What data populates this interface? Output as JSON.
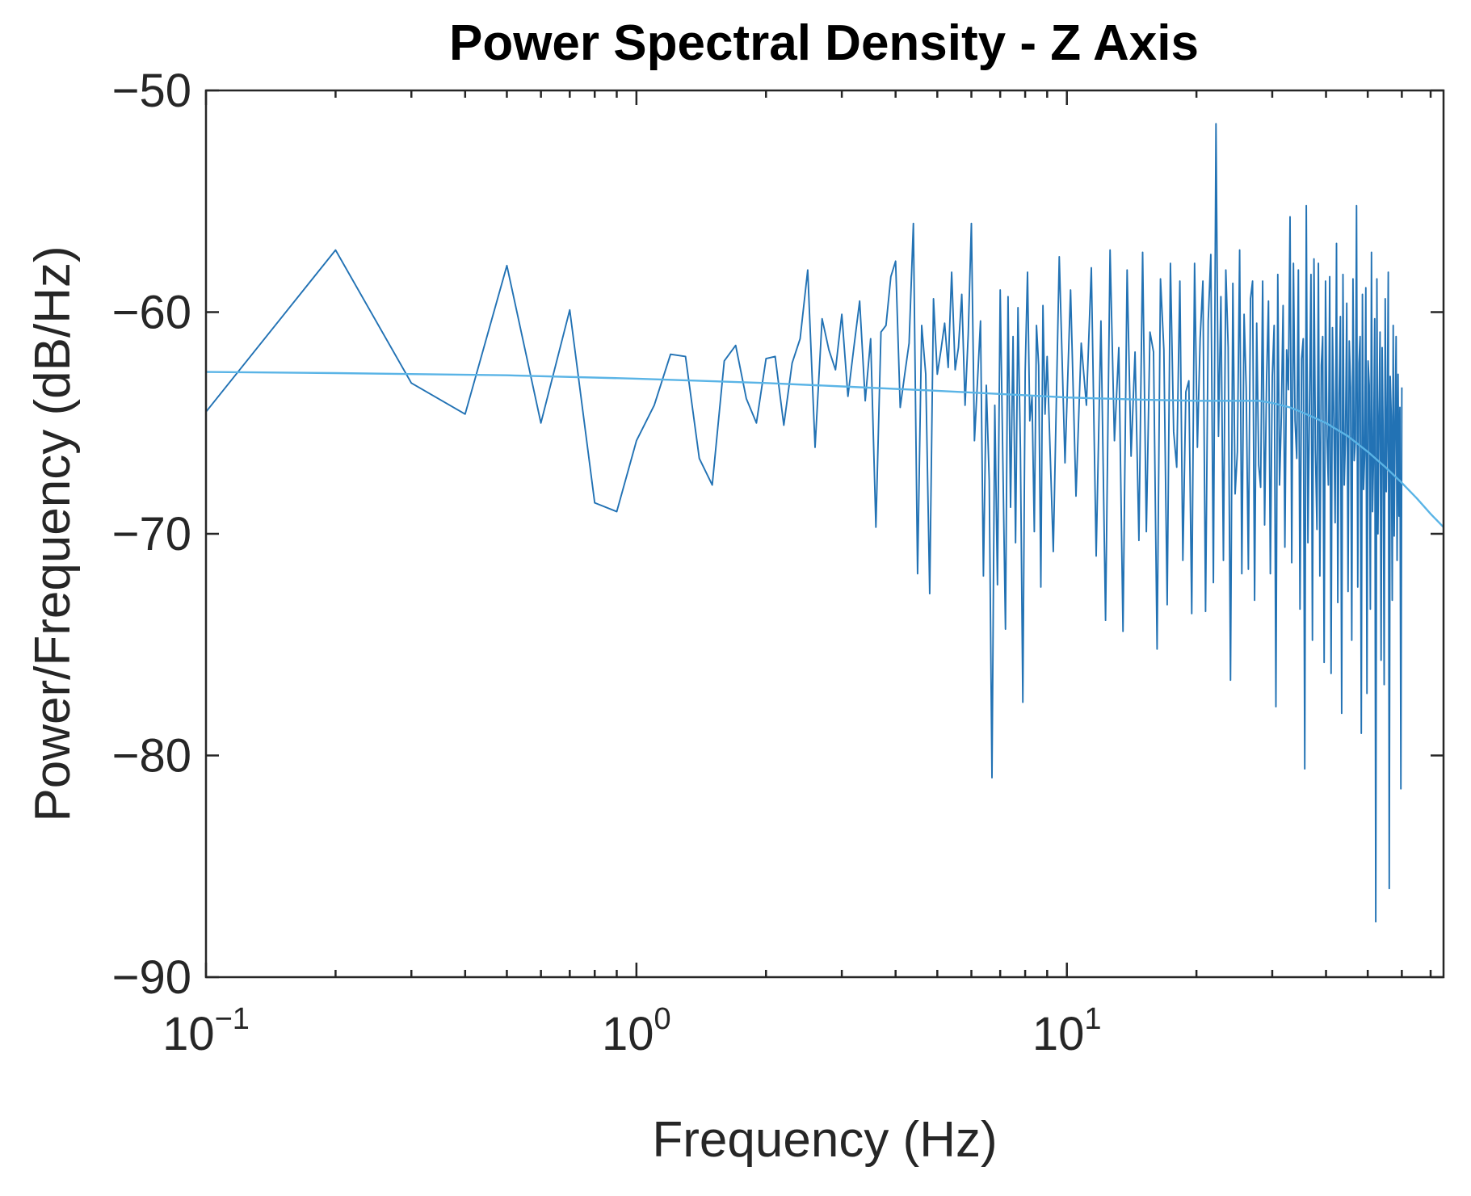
{
  "chart_data": {
    "type": "line",
    "title": "Power Spectral Density - Z Axis",
    "xlabel": "Frequency (Hz)",
    "ylabel": "Power/Frequency (dB/Hz)",
    "x_scale": "log",
    "xlim": [
      0.1,
      75
    ],
    "ylim": [
      -90,
      -50
    ],
    "x_ticks": [
      {
        "base": "10",
        "exp": "−1",
        "value": 0.1
      },
      {
        "base": "10",
        "exp": "0",
        "value": 1
      },
      {
        "base": "10",
        "exp": "1",
        "value": 10
      }
    ],
    "y_ticks": [
      {
        "label": "−50",
        "value": -50
      },
      {
        "label": "−60",
        "value": -60
      },
      {
        "label": "−70",
        "value": -70
      },
      {
        "label": "−80",
        "value": -80
      },
      {
        "label": "−90",
        "value": -90
      }
    ],
    "grid": false,
    "colors": {
      "psd": "#2272b4",
      "fit": "#5ab4e6",
      "axes": "#262626"
    },
    "series": [
      {
        "style": "raw",
        "x": [
          0.1,
          0.2,
          0.3,
          0.4,
          0.5,
          0.6,
          0.7,
          0.8,
          0.9,
          1.0,
          1.1,
          1.2,
          1.3,
          1.4,
          1.5,
          1.6,
          1.7,
          1.8,
          1.9,
          2.0,
          2.1,
          2.2,
          2.3,
          2.4,
          2.5,
          2.6,
          2.7,
          2.8,
          2.9,
          3.0,
          3.1,
          3.2,
          3.3,
          3.4,
          3.5,
          3.6,
          3.7,
          3.8,
          3.9,
          4.0,
          4.1,
          4.2,
          4.3,
          4.4,
          4.5,
          4.6,
          4.7,
          4.8,
          4.9,
          5.0,
          5.1,
          5.2,
          5.3,
          5.4,
          5.5,
          5.6,
          5.7,
          5.8,
          5.9,
          6.0,
          6.1,
          6.2,
          6.3,
          6.4,
          6.5,
          6.6,
          6.7,
          6.8,
          6.9,
          7.0,
          7.1,
          7.2,
          7.3,
          7.4,
          7.5,
          7.6,
          7.7,
          7.8,
          7.9,
          8.0,
          8.1,
          8.2,
          8.3,
          8.4,
          8.5,
          8.6,
          8.7,
          8.8,
          8.9,
          9.0,
          9.3,
          9.6,
          9.9,
          10.2,
          10.5,
          10.8,
          11.1,
          11.4,
          11.7,
          12.0,
          12.3,
          12.6,
          12.9,
          13.2,
          13.5,
          13.8,
          14.1,
          14.4,
          14.7,
          15.0,
          15.3,
          15.6,
          15.9,
          16.2,
          16.5,
          16.8,
          17.1,
          17.4,
          17.7,
          18.0,
          18.3,
          18.6,
          18.9,
          19.2,
          19.5,
          19.8,
          20.1,
          20.4,
          20.7,
          21.0,
          21.3,
          21.6,
          21.9,
          22.2,
          22.5,
          22.8,
          23.1,
          23.4,
          23.7,
          24.0,
          24.3,
          24.6,
          24.9,
          25.2,
          25.5,
          25.8,
          26.1,
          26.4,
          26.7,
          27.0,
          27.3,
          27.6,
          27.9,
          28.2,
          28.5,
          28.8,
          29.1,
          29.4,
          29.7,
          30.0,
          30.3,
          30.6,
          30.9,
          31.2,
          31.5,
          31.8,
          32.1,
          32.4,
          32.7,
          33.0,
          33.3,
          33.6,
          33.9,
          34.2,
          34.5,
          34.8,
          35.1,
          35.4,
          35.7,
          36.0,
          36.3,
          36.6,
          36.9,
          37.2,
          37.5,
          37.8,
          38.1,
          38.4,
          38.7,
          39.0,
          39.3,
          39.6,
          39.9,
          40.2,
          40.5,
          40.8,
          41.1,
          41.4,
          41.7,
          42.0,
          42.3,
          42.6,
          42.9,
          43.2,
          43.5,
          43.8,
          44.1,
          44.4,
          44.7,
          45.0,
          45.3,
          45.6,
          45.9,
          46.2,
          46.5,
          46.8,
          47.1,
          47.4,
          47.7,
          48.0,
          48.3,
          48.6,
          48.9,
          49.2,
          49.5,
          49.8,
          50.1,
          50.4,
          50.7,
          51.0,
          51.3,
          51.6,
          51.9,
          52.2,
          52.5,
          52.8,
          53.1,
          53.4,
          53.7,
          54.0,
          54.3,
          54.6,
          54.9,
          55.2,
          55.5,
          55.8,
          56.1,
          56.4,
          56.7,
          57.0,
          57.3,
          57.6,
          57.9,
          58.2,
          58.5,
          58.8,
          59.1,
          59.4,
          59.7,
          60.0
        ],
        "y": [
          -64.5,
          -57.2,
          -63.2,
          -64.6,
          -57.9,
          -65.0,
          -59.9,
          -68.6,
          -69.0,
          -65.8,
          -64.2,
          -61.9,
          -62.0,
          -66.6,
          -67.8,
          -62.2,
          -61.5,
          -63.9,
          -65.0,
          -62.1,
          -62.0,
          -65.1,
          -62.3,
          -61.2,
          -58.1,
          -66.1,
          -60.3,
          -61.7,
          -62.6,
          -60.1,
          -63.8,
          -61.6,
          -59.5,
          -64.0,
          -61.2,
          -69.7,
          -60.9,
          -60.6,
          -58.4,
          -57.7,
          -64.3,
          -62.8,
          -61.4,
          -56.0,
          -71.8,
          -60.6,
          -62.8,
          -72.7,
          -59.4,
          -62.8,
          -61.7,
          -60.5,
          -62.5,
          -58.2,
          -62.6,
          -61.6,
          -59.2,
          -64.2,
          -61.0,
          -56.0,
          -65.8,
          -63.1,
          -60.4,
          -71.9,
          -63.3,
          -67.6,
          -81.0,
          -64.2,
          -72.3,
          -59.0,
          -66.8,
          -74.3,
          -59.3,
          -68.8,
          -61.1,
          -70.4,
          -59.8,
          -66.2,
          -77.6,
          -62.7,
          -58.2,
          -64.9,
          -63.8,
          -69.9,
          -60.6,
          -62.4,
          -72.4,
          -59.7,
          -64.6,
          -62.0,
          -70.8,
          -57.5,
          -66.8,
          -59.0,
          -68.3,
          -61.4,
          -64.2,
          -58.0,
          -71.0,
          -60.4,
          -73.9,
          -57.2,
          -65.8,
          -61.6,
          -74.4,
          -58.1,
          -66.5,
          -61.8,
          -70.3,
          -57.3,
          -69.9,
          -60.9,
          -61.8,
          -75.2,
          -58.5,
          -61.7,
          -73.2,
          -57.8,
          -65.4,
          -67.0,
          -58.6,
          -71.2,
          -63.6,
          -63.1,
          -73.6,
          -57.8,
          -66.1,
          -61.2,
          -58.6,
          -73.5,
          -60.4,
          -57.4,
          -72.2,
          -51.5,
          -65.6,
          -59.3,
          -71.2,
          -58.1,
          -61.6,
          -76.6,
          -58.7,
          -68.2,
          -66.3,
          -57.2,
          -71.8,
          -60.1,
          -63.4,
          -71.6,
          -59.4,
          -58.6,
          -73.0,
          -60.5,
          -66.9,
          -67.9,
          -58.6,
          -69.6,
          -63.1,
          -59.5,
          -71.8,
          -62.9,
          -60.6,
          -77.8,
          -58.3,
          -67.8,
          -64.7,
          -59.7,
          -70.6,
          -61.7,
          -63.5,
          -55.7,
          -71.3,
          -57.8,
          -64.9,
          -66.6,
          -58.1,
          -73.4,
          -62.1,
          -61.2,
          -80.6,
          -55.2,
          -70.4,
          -64.5,
          -58.3,
          -74.8,
          -57.6,
          -66.2,
          -69.8,
          -57.8,
          -71.9,
          -62.4,
          -61.1,
          -75.8,
          -58.6,
          -65.6,
          -67.8,
          -58.4,
          -76.3,
          -60.7,
          -64.8,
          -69.5,
          -56.9,
          -73.1,
          -63.7,
          -60.2,
          -78.1,
          -58.3,
          -67.8,
          -65.5,
          -59.6,
          -72.6,
          -61.3,
          -63.4,
          -74.8,
          -58.5,
          -66.7,
          -65.8,
          -55.2,
          -72.4,
          -62.3,
          -61.1,
          -79.0,
          -59.2,
          -68.0,
          -66.4,
          -58.9,
          -77.2,
          -62.2,
          -63.3,
          -73.4,
          -57.3,
          -69.0,
          -66.2,
          -60.3,
          -87.5,
          -58.5,
          -70.0,
          -64.7,
          -60.9,
          -75.7,
          -61.6,
          -65.7,
          -76.8,
          -59.4,
          -68.1,
          -65.2,
          -58.2,
          -86.0,
          -62.9,
          -64.7,
          -73.0,
          -60.6,
          -70.1,
          -65.1,
          -61.1,
          -71.2,
          -62.8,
          -69.2,
          -64.3,
          -81.5,
          -63.4
        ]
      },
      {
        "style": "fit",
        "x": [
          0.1,
          0.2,
          0.5,
          1,
          2,
          3,
          5,
          8,
          10,
          15,
          20,
          25,
          28,
          30,
          33,
          36,
          40,
          45,
          50,
          55,
          60,
          65,
          70,
          75
        ],
        "y": [
          -62.7,
          -62.75,
          -62.85,
          -63.0,
          -63.2,
          -63.35,
          -63.55,
          -63.75,
          -63.85,
          -63.95,
          -64.0,
          -64.0,
          -64.0,
          -64.1,
          -64.3,
          -64.6,
          -65.0,
          -65.6,
          -66.3,
          -67.0,
          -67.7,
          -68.4,
          -69.1,
          -69.7
        ]
      }
    ]
  }
}
